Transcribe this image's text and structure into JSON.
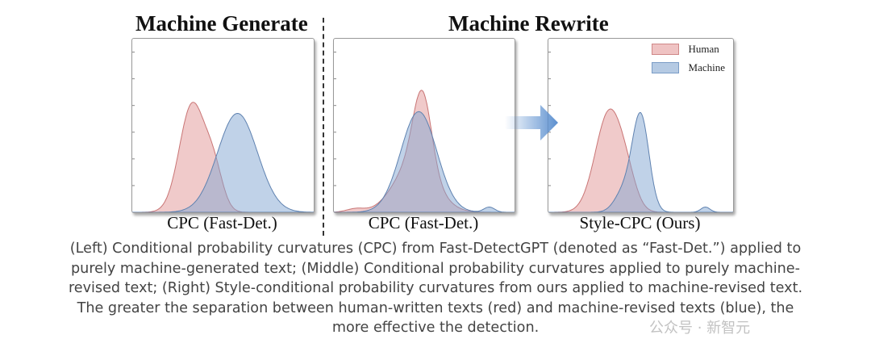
{
  "titles": {
    "left": "Machine Generate",
    "right": "Machine Rewrite"
  },
  "colors": {
    "human": "#e8b4b4",
    "human_edge": "#c97575",
    "machine": "#a8c0dc",
    "machine_edge": "#5f82b0",
    "arrow": "#5b8fcf"
  },
  "legend": {
    "human": "Human",
    "machine": "Machine",
    "placement": "top-right"
  },
  "chart_data": [
    {
      "type": "area",
      "xlabel": "CPC (Fast-Det.)",
      "grid": false,
      "series": [
        {
          "name": "Human",
          "components": [
            [
              0.33,
              0.07,
              0.62
            ],
            [
              0.45,
              0.05,
              0.22
            ]
          ]
        },
        {
          "name": "Machine",
          "components": [
            [
              0.58,
              0.11,
              0.57
            ]
          ]
        }
      ]
    },
    {
      "type": "area",
      "xlabel": "CPC (Fast-Det.)",
      "grid": false,
      "series": [
        {
          "name": "Human",
          "components": [
            [
              0.49,
              0.05,
              0.42
            ],
            [
              0.45,
              0.11,
              0.3
            ],
            [
              0.12,
              0.05,
              0.02
            ]
          ]
        },
        {
          "name": "Machine",
          "components": [
            [
              0.47,
              0.1,
              0.58
            ],
            [
              0.86,
              0.03,
              0.03
            ]
          ]
        }
      ]
    },
    {
      "type": "area",
      "xlabel": "Style-CPC (Ours)",
      "grid": false,
      "series": [
        {
          "name": "Human",
          "components": [
            [
              0.33,
              0.075,
              0.58
            ],
            [
              0.43,
              0.05,
              0.1
            ]
          ]
        },
        {
          "name": "Machine",
          "components": [
            [
              0.5,
              0.045,
              0.55
            ],
            [
              0.41,
              0.05,
              0.12
            ],
            [
              0.85,
              0.025,
              0.03
            ]
          ]
        }
      ]
    }
  ],
  "caption": [
    "(Left) Conditional probability curvatures (CPC) from Fast-DetectGPT (denoted as “Fast-Det.”) applied to",
    "purely machine-generated text; (Middle) Conditional probability curvatures applied to purely machine-",
    "revised text; (Right) Style-conditional probability curvatures from ours applied to machine-revised text.",
    "The greater the separation between human-written texts (red) and machine-revised texts (blue), the",
    "more effective the detection."
  ],
  "watermark": "公众号 · 新智元"
}
